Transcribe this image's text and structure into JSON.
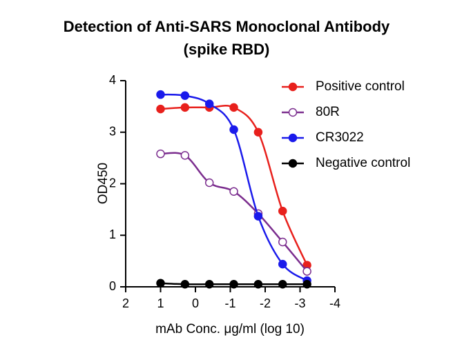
{
  "chart_data": {
    "type": "scatter",
    "title": "Detection of Anti-SARS Monoclonal Antibody",
    "subtitle": "(spike RBD)",
    "x_label": "mAb Conc. μg/ml (log 10)",
    "y_label": "OD450",
    "x": [
      1,
      0.3,
      -0.4,
      -1.1,
      -1.8,
      -2.5,
      -3.2
    ],
    "xlim": [
      2,
      -4
    ],
    "xticks": [
      2,
      1,
      0,
      -1,
      -2,
      -3,
      -4
    ],
    "ylim": [
      0,
      4
    ],
    "yticks": [
      0,
      1,
      2,
      3,
      4
    ],
    "legend": "top-right",
    "series": [
      {
        "name": "Positive control",
        "color": "#e8201c",
        "filled": true,
        "values": [
          3.45,
          3.48,
          3.48,
          3.48,
          3.0,
          1.47,
          0.42
        ]
      },
      {
        "name": "80R",
        "color": "#7b2d8e",
        "filled": false,
        "values": [
          2.58,
          2.55,
          2.02,
          1.85,
          1.42,
          0.87,
          0.3
        ]
      },
      {
        "name": "CR3022",
        "color": "#1a1aeb",
        "filled": true,
        "values": [
          3.73,
          3.71,
          3.55,
          3.05,
          1.37,
          0.44,
          0.12
        ]
      },
      {
        "name": "Negative control",
        "color": "#000000",
        "filled": true,
        "values": [
          0.07,
          0.05,
          0.05,
          0.05,
          0.05,
          0.05,
          0.05
        ]
      }
    ]
  }
}
